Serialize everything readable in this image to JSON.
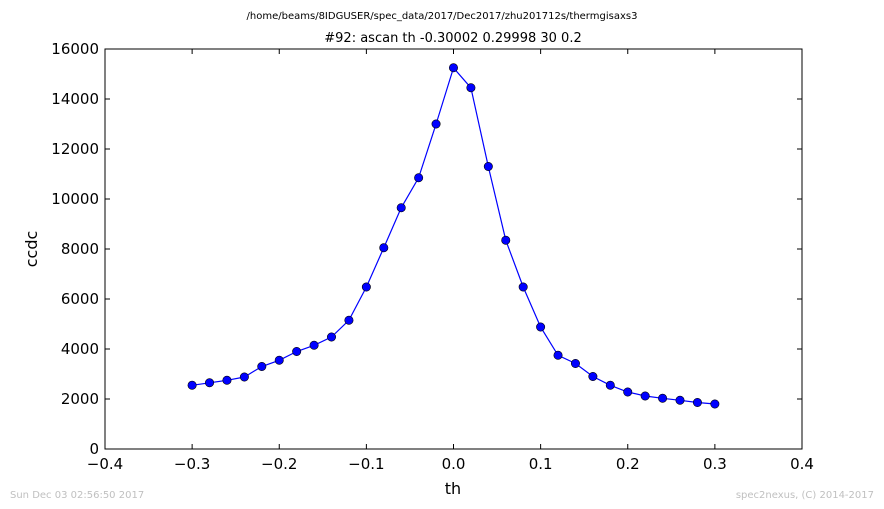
{
  "suptitle": "/home/beams/8IDGUSER/spec_data/2017/Dec2017/zhu201712s/thermgisaxs3",
  "footer_left": "Sun Dec 03 02:56:50 2017",
  "footer_right": "spec2nexus, (C) 2014-2017",
  "chart_data": {
    "type": "line",
    "title": "#92: ascan  th -0.30002 0.29998  30 0.2",
    "xlabel": "th",
    "ylabel": "ccdc",
    "xlim": [
      -0.4,
      0.4
    ],
    "ylim": [
      0,
      16000
    ],
    "xticks": [
      -0.4,
      -0.3,
      -0.2,
      -0.1,
      0.0,
      0.1,
      0.2,
      0.3,
      0.4
    ],
    "xtick_labels": [
      "−0.4",
      "−0.3",
      "−0.2",
      "−0.1",
      "0.0",
      "0.1",
      "0.2",
      "0.3",
      "0.4"
    ],
    "yticks": [
      0,
      2000,
      4000,
      6000,
      8000,
      10000,
      12000,
      14000,
      16000
    ],
    "ytick_labels": [
      "0",
      "2000",
      "4000",
      "6000",
      "8000",
      "10000",
      "12000",
      "14000",
      "16000"
    ],
    "grid": false,
    "marker": "circle",
    "color": "#0000ff",
    "series": [
      {
        "x": [
          -0.30002,
          -0.28002,
          -0.26002,
          -0.24002,
          -0.22002,
          -0.20002,
          -0.18002,
          -0.16002,
          -0.14002,
          -0.12002,
          -0.10002,
          -0.08002,
          -0.06002,
          -0.04002,
          -0.02002,
          -2e-05,
          0.01998,
          0.03998,
          0.05998,
          0.07998,
          0.09998,
          0.11998,
          0.13998,
          0.15998,
          0.17998,
          0.19998,
          0.21998,
          0.23998,
          0.25998,
          0.27998,
          0.29998
        ],
        "values": [
          2550,
          2650,
          2750,
          2880,
          3300,
          3550,
          3900,
          4150,
          4480,
          5150,
          6480,
          8050,
          9650,
          10850,
          13000,
          15250,
          14450,
          11300,
          8350,
          6480,
          4880,
          3750,
          3420,
          2900,
          2550,
          2280,
          2120,
          2030,
          1950,
          1860,
          1800
        ]
      }
    ]
  }
}
